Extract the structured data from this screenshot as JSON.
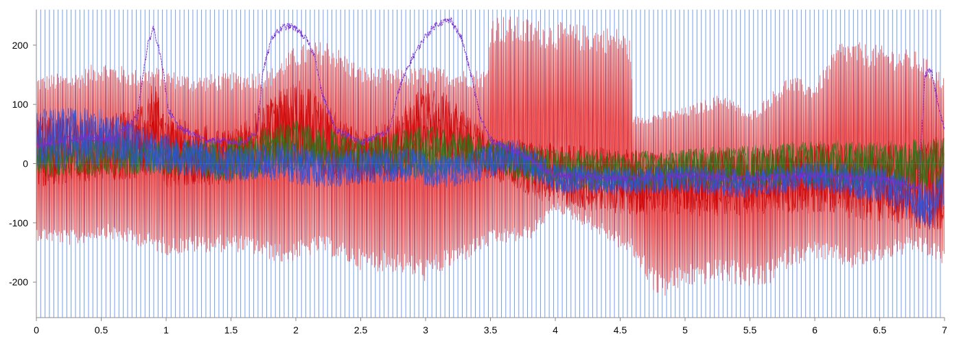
{
  "chart_data": {
    "type": "line",
    "title": "",
    "xlabel": "",
    "ylabel": "",
    "xlim": [
      0,
      7
    ],
    "ylim": [
      -260,
      260
    ],
    "x_ticks": [
      0,
      0.5,
      1,
      1.5,
      2,
      2.5,
      3,
      3.5,
      4,
      4.5,
      5,
      5.5,
      6,
      6.5,
      7
    ],
    "x_tick_labels": [
      "0",
      "0.5",
      "1",
      "1.5",
      "2",
      "2.5",
      "3",
      "3.5",
      "4",
      "4.5",
      "5",
      "5.5",
      "6",
      "6.5",
      "7"
    ],
    "y_ticks": [
      200,
      100,
      0,
      -100,
      -200
    ],
    "y_tick_labels": [
      "200",
      "100",
      "0",
      "-100",
      "-200"
    ],
    "grid": false,
    "legend": "none",
    "background_vlines": {
      "color": "#5b8def",
      "spacing": 0.0335,
      "ymin": -260,
      "ymax": 260
    },
    "series": [
      {
        "color": "#e60000",
        "style": "oscillation-envelope",
        "upper": [
          [
            0,
            150
          ],
          [
            0.3,
            155
          ],
          [
            0.5,
            175
          ],
          [
            0.75,
            160
          ],
          [
            0.9,
            165
          ],
          [
            1.2,
            150
          ],
          [
            1.6,
            155
          ],
          [
            1.8,
            160
          ],
          [
            2.0,
            200
          ],
          [
            2.25,
            210
          ],
          [
            2.5,
            165
          ],
          [
            2.8,
            160
          ],
          [
            3.0,
            165
          ],
          [
            3.3,
            160
          ],
          [
            3.48,
            160
          ],
          [
            3.5,
            255
          ],
          [
            4.0,
            240
          ],
          [
            4.5,
            230
          ],
          [
            4.58,
            210
          ],
          [
            4.6,
            80
          ],
          [
            5.0,
            95
          ],
          [
            5.3,
            120
          ],
          [
            5.5,
            85
          ],
          [
            5.8,
            150
          ],
          [
            6.0,
            135
          ],
          [
            6.2,
            210
          ],
          [
            6.5,
            200
          ],
          [
            6.8,
            190
          ],
          [
            7,
            150
          ]
        ],
        "lower": [
          [
            0,
            -130
          ],
          [
            0.3,
            -140
          ],
          [
            0.5,
            -125
          ],
          [
            0.8,
            -140
          ],
          [
            1.0,
            -155
          ],
          [
            1.3,
            -150
          ],
          [
            1.6,
            -150
          ],
          [
            1.9,
            -170
          ],
          [
            2.2,
            -150
          ],
          [
            2.5,
            -180
          ],
          [
            2.8,
            -185
          ],
          [
            3.0,
            -200
          ],
          [
            3.3,
            -165
          ],
          [
            3.5,
            -140
          ],
          [
            3.8,
            -130
          ],
          [
            4.0,
            -80
          ],
          [
            4.3,
            -115
          ],
          [
            4.6,
            -160
          ],
          [
            4.8,
            -230
          ],
          [
            5.0,
            -210
          ],
          [
            5.3,
            -200
          ],
          [
            5.6,
            -215
          ],
          [
            5.8,
            -175
          ],
          [
            6.0,
            -160
          ],
          [
            6.3,
            -180
          ],
          [
            6.6,
            -160
          ],
          [
            6.8,
            -150
          ],
          [
            7,
            -175
          ]
        ]
      },
      {
        "color": "#cc0000",
        "style": "noise-band",
        "mid": [
          [
            0,
            20
          ],
          [
            0.5,
            25
          ],
          [
            0.85,
            40
          ],
          [
            0.9,
            80
          ],
          [
            1.0,
            20
          ],
          [
            1.5,
            10
          ],
          [
            1.8,
            50
          ],
          [
            2.0,
            70
          ],
          [
            2.2,
            40
          ],
          [
            2.5,
            10
          ],
          [
            2.8,
            30
          ],
          [
            3.0,
            70
          ],
          [
            3.2,
            55
          ],
          [
            3.5,
            10
          ],
          [
            4.0,
            -20
          ],
          [
            4.5,
            -30
          ],
          [
            5.0,
            -35
          ],
          [
            5.5,
            -30
          ],
          [
            6.0,
            -25
          ],
          [
            6.5,
            -30
          ],
          [
            6.8,
            -40
          ],
          [
            7,
            -30
          ]
        ],
        "amplitude": [
          [
            0,
            60
          ],
          [
            0.5,
            55
          ],
          [
            0.9,
            65
          ],
          [
            1.5,
            45
          ],
          [
            2.0,
            80
          ],
          [
            2.5,
            45
          ],
          [
            3.0,
            70
          ],
          [
            3.5,
            35
          ],
          [
            4.0,
            55
          ],
          [
            5.0,
            55
          ],
          [
            6.0,
            60
          ],
          [
            6.8,
            75
          ],
          [
            7,
            80
          ]
        ]
      },
      {
        "color": "#1a7f1a",
        "style": "noise-band",
        "mid": [
          [
            0,
            10
          ],
          [
            0.5,
            15
          ],
          [
            1.0,
            10
          ],
          [
            1.5,
            5
          ],
          [
            2.0,
            30
          ],
          [
            2.5,
            15
          ],
          [
            3.0,
            20
          ],
          [
            3.5,
            15
          ],
          [
            4.0,
            -10
          ],
          [
            4.5,
            -15
          ],
          [
            5.0,
            -10
          ],
          [
            5.5,
            -5
          ],
          [
            6.0,
            0
          ],
          [
            6.5,
            -5
          ],
          [
            7,
            0
          ]
        ],
        "amplitude": [
          [
            0,
            35
          ],
          [
            0.5,
            35
          ],
          [
            1.0,
            30
          ],
          [
            2.0,
            45
          ],
          [
            2.5,
            30
          ],
          [
            3.0,
            45
          ],
          [
            3.5,
            30
          ],
          [
            4.0,
            35
          ],
          [
            5.0,
            35
          ],
          [
            6.0,
            40
          ],
          [
            7,
            45
          ]
        ]
      },
      {
        "color": "#2255e8",
        "style": "noise-band",
        "mid": [
          [
            0,
            40
          ],
          [
            0.5,
            45
          ],
          [
            0.9,
            20
          ],
          [
            1.5,
            0
          ],
          [
            1.9,
            5
          ],
          [
            2.2,
            -10
          ],
          [
            2.5,
            -5
          ],
          [
            2.9,
            0
          ],
          [
            3.1,
            -15
          ],
          [
            3.5,
            5
          ],
          [
            3.7,
            15
          ],
          [
            4.0,
            -25
          ],
          [
            4.5,
            -30
          ],
          [
            5.0,
            -25
          ],
          [
            5.5,
            -35
          ],
          [
            6.0,
            -20
          ],
          [
            6.5,
            -35
          ],
          [
            6.9,
            -75
          ],
          [
            7,
            -40
          ]
        ],
        "amplitude": [
          [
            0,
            55
          ],
          [
            0.5,
            50
          ],
          [
            1.0,
            35
          ],
          [
            1.5,
            30
          ],
          [
            2.0,
            35
          ],
          [
            2.5,
            30
          ],
          [
            3.0,
            30
          ],
          [
            3.5,
            30
          ],
          [
            4.0,
            25
          ],
          [
            5.0,
            25
          ],
          [
            6.0,
            25
          ],
          [
            6.9,
            40
          ],
          [
            7,
            40
          ]
        ]
      },
      {
        "color": "#7a2bd6",
        "style": "line",
        "points": [
          [
            0,
            30
          ],
          [
            0.2,
            40
          ],
          [
            0.4,
            45
          ],
          [
            0.6,
            40
          ],
          [
            0.78,
            80
          ],
          [
            0.82,
            150
          ],
          [
            0.86,
            200
          ],
          [
            0.9,
            230
          ],
          [
            0.94,
            200
          ],
          [
            0.98,
            150
          ],
          [
            1.02,
            90
          ],
          [
            1.1,
            60
          ],
          [
            1.3,
            40
          ],
          [
            1.6,
            35
          ],
          [
            1.7,
            55
          ],
          [
            1.75,
            160
          ],
          [
            1.82,
            215
          ],
          [
            1.9,
            230
          ],
          [
            1.96,
            232
          ],
          [
            2.02,
            225
          ],
          [
            2.08,
            210
          ],
          [
            2.15,
            180
          ],
          [
            2.2,
            120
          ],
          [
            2.3,
            60
          ],
          [
            2.5,
            35
          ],
          [
            2.72,
            55
          ],
          [
            2.8,
            130
          ],
          [
            2.9,
            180
          ],
          [
            3.0,
            215
          ],
          [
            3.08,
            235
          ],
          [
            3.14,
            240
          ],
          [
            3.2,
            242
          ],
          [
            3.28,
            210
          ],
          [
            3.35,
            150
          ],
          [
            3.42,
            80
          ],
          [
            3.5,
            40
          ],
          [
            3.7,
            20
          ],
          [
            4.0,
            -20
          ],
          [
            4.5,
            -25
          ],
          [
            5.0,
            -20
          ],
          [
            5.5,
            -25
          ],
          [
            6.0,
            -20
          ],
          [
            6.5,
            -25
          ],
          [
            6.8,
            -40
          ],
          [
            6.85,
            150
          ],
          [
            6.9,
            160
          ],
          [
            6.95,
            100
          ],
          [
            7,
            60
          ]
        ]
      }
    ]
  }
}
